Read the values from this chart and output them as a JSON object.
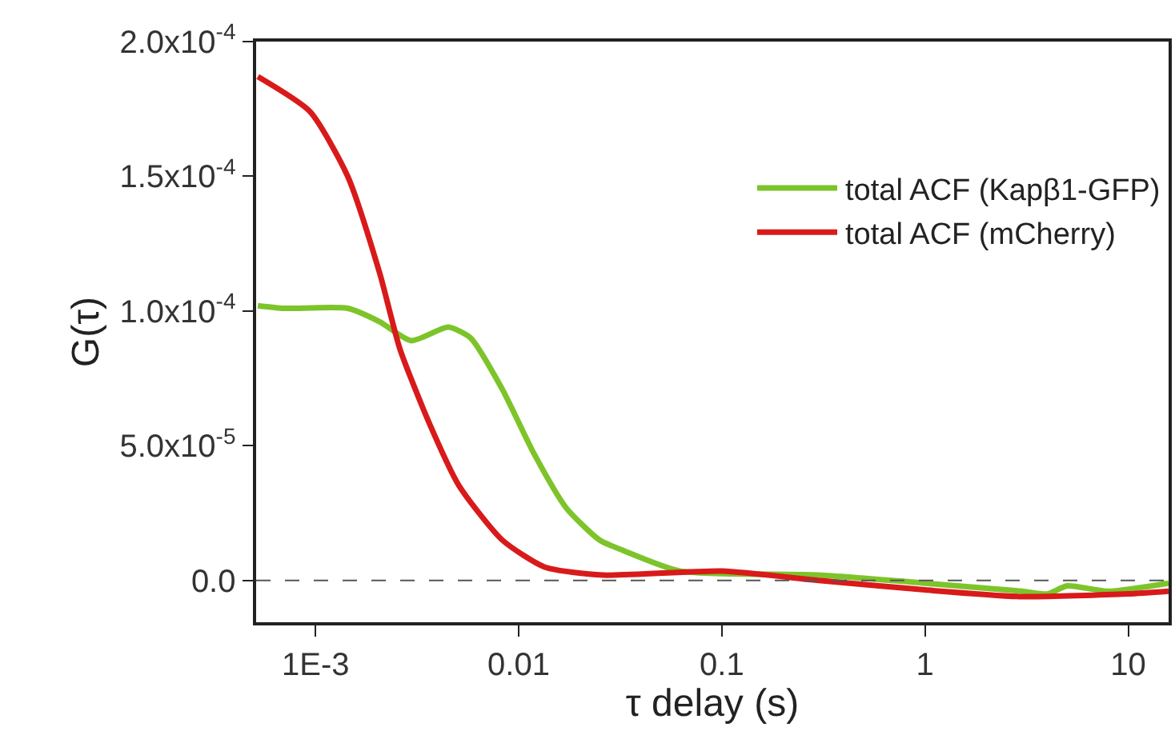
{
  "chart_data": {
    "type": "line",
    "xlabel": "τ delay (s)",
    "ylabel": "G(τ)",
    "log": "x",
    "xlim": [
      0.00051,
      15.8
    ],
    "ylim": [
      -1.55e-05,
      0.0002
    ],
    "xticks": [
      {
        "value": 0.001,
        "label": "1E-3"
      },
      0.01,
      0.1,
      1,
      10
    ],
    "yticks": [
      {
        "value": 0,
        "label": "0.0"
      },
      {
        "value": 5e-05,
        "label": "5.0x10$^{-5}$"
      },
      {
        "value": 0.0001,
        "label": "1.0x10$^{-4}$"
      },
      {
        "value": 0.00015,
        "label": "1.5x10$^{-4}$"
      },
      {
        "value": 0.0002,
        "label": "2.0x10$^{-4}$"
      }
    ],
    "legend": "top right",
    "marker": "none",
    "line_style": "solid",
    "ref_lines": [
      {
        "axis": "y",
        "value": 0,
        "color": "#555555",
        "line_style": "dashed"
      }
    ],
    "series": [
      {
        "name": "total ACF (Kapβ1-GFP)",
        "color": "#7dc42a",
        "x": [
          0.00052,
          0.0007,
          0.00144,
          0.00207,
          0.00296,
          0.0045,
          0.0058,
          0.0083,
          0.0119,
          0.0171,
          0.025,
          0.033,
          0.062,
          0.3,
          1,
          3,
          4,
          5,
          8,
          15.8
        ],
        "values": [
          0.000102,
          0.000101,
          0.000101,
          9.6e-05,
          8.9e-05,
          9.4e-05,
          9e-05,
          7.1e-05,
          4.7e-05,
          2.7e-05,
          1.5e-05,
          1.1e-05,
          3.5e-06,
          2e-06,
          -1e-06,
          -4e-06,
          -5e-06,
          -2e-06,
          -4e-06,
          -1e-06
        ]
      },
      {
        "name": "total ACF (mCherry)",
        "color": "#d91a1a",
        "x": [
          0.00052,
          0.00094,
          0.00144,
          0.00207,
          0.0026,
          0.0036,
          0.0051,
          0.0083,
          0.0134,
          0.026,
          0.1,
          0.3,
          1,
          3,
          10,
          15.8
        ],
        "values": [
          0.000187,
          0.000174,
          0.00015,
          0.000114,
          8.6e-05,
          5.9e-05,
          3.5e-05,
          1.5e-05,
          5e-06,
          2e-06,
          3.5e-06,
          0.0,
          -3.5e-06,
          -6e-06,
          -5e-06,
          -4e-06
        ]
      }
    ]
  }
}
